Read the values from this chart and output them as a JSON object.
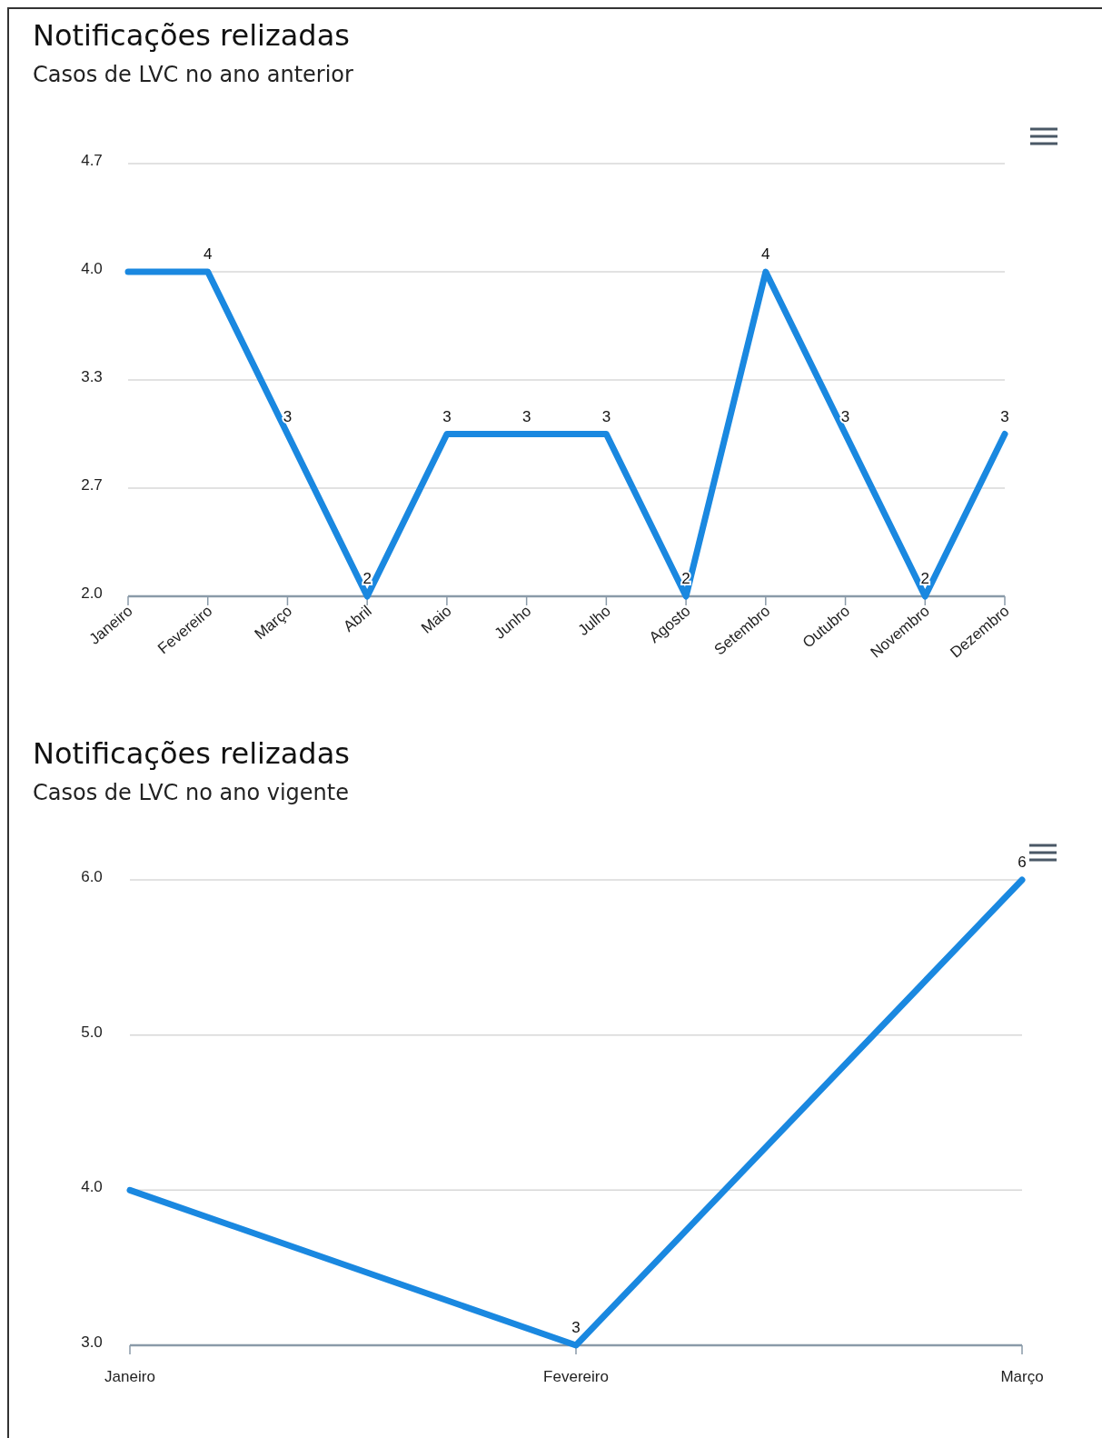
{
  "chart_data": [
    {
      "type": "line",
      "title": "Notificações relizadas",
      "subtitle": "Casos de LVC no ano anterior",
      "categories": [
        "Janeiro",
        "Fevereiro",
        "Março",
        "Abril",
        "Maio",
        "Junho",
        "Julho",
        "Agosto",
        "Setembro",
        "Outubro",
        "Novembro",
        "Dezembro"
      ],
      "series": [
        {
          "color": "#1a88e0",
          "values": [
            4,
            4,
            3,
            2,
            3,
            3,
            3,
            2,
            4,
            3,
            2,
            3
          ],
          "value_labels": [
            null,
            "4",
            "3",
            "2",
            "3",
            "3",
            "3",
            "2",
            "4",
            "3",
            "2",
            "3"
          ]
        }
      ],
      "ylim": [
        2,
        4.667
      ],
      "yticks": [
        {
          "value": 2,
          "label": "2.0"
        },
        {
          "value": 2.667,
          "label": "2.7"
        },
        {
          "value": 3.333,
          "label": "3.3"
        },
        {
          "value": 4,
          "label": "4.0"
        },
        {
          "value": 4.667,
          "label": "4.7"
        }
      ],
      "grid": "y",
      "marker": "none"
    },
    {
      "type": "line",
      "title": "Notificações relizadas",
      "subtitle": "Casos de LVC no ano vigente",
      "categories": [
        "Janeiro",
        "Fevereiro",
        "Março"
      ],
      "series": [
        {
          "color": "#1a88e0",
          "values": [
            4,
            3,
            6
          ],
          "value_labels": [
            null,
            "3",
            "6"
          ]
        }
      ],
      "ylim": [
        3,
        6
      ],
      "yticks": [
        {
          "value": 3,
          "label": "3.0"
        },
        {
          "value": 4,
          "label": "4.0"
        },
        {
          "value": 5,
          "label": "5.0"
        },
        {
          "value": 6,
          "label": "6.0"
        }
      ],
      "grid": "y",
      "marker": "none"
    }
  ]
}
